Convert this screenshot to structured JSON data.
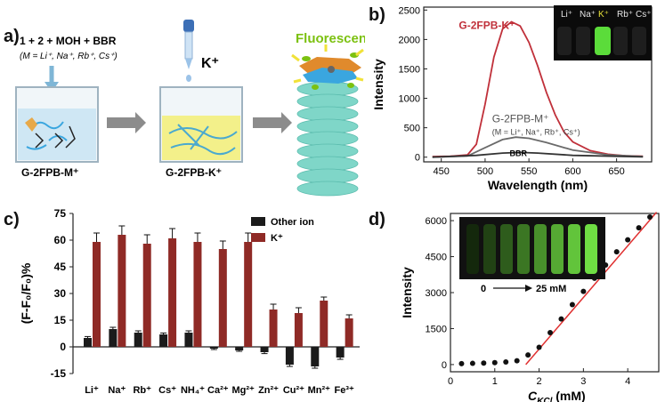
{
  "panel_labels": {
    "a": "a)",
    "b": "b)",
    "c": "c)",
    "d": "d)"
  },
  "panel_a": {
    "reaction": "1 + 2 + MOH + BBR",
    "metals": "(M = Li⁺, Na⁺, Rb⁺, Cs⁺)",
    "added_ion": "K⁺",
    "fluorescent": "Fluorescent",
    "label_left": "G-2FPB-M⁺",
    "label_mid": "G-2FPB-K⁺",
    "colors": {
      "beaker_liquid_left": "#cfe7f4",
      "beaker_liquid_mid": "#f3f08a",
      "stack": "#7fd6c8",
      "fluor_text": "#7cc110"
    }
  },
  "panel_b_text": {
    "curve_k_label": "G-2FPB-K⁺",
    "curve_m_label": "G-2FPB-M⁺",
    "curve_m_sub": "(M = Li⁺, Na⁺, Rb⁺, Cs⁺)",
    "bbr_label": "BBR",
    "inset_labels": [
      "Li⁺",
      "Na⁺",
      "K⁺",
      "Rb⁺",
      "Cs⁺"
    ]
  },
  "panel_d_text": {
    "inset_range_start": "0",
    "inset_range_end": "25 mM"
  },
  "chart_data": [
    {
      "id": "b",
      "type": "line",
      "xlabel": "Wavelength (nm)",
      "ylabel": "Intensity",
      "xlim": [
        430,
        690
      ],
      "ylim": [
        -80,
        2550
      ],
      "xticks": [
        450,
        500,
        550,
        600,
        650
      ],
      "yticks": [
        0,
        500,
        1000,
        1500,
        2000,
        2500
      ],
      "series": [
        {
          "name": "G-2FPB-K⁺",
          "color": "#c0303a",
          "x": [
            440,
            460,
            480,
            490,
            500,
            510,
            520,
            530,
            540,
            550,
            560,
            570,
            580,
            590,
            600,
            620,
            640,
            660,
            680
          ],
          "y": [
            10,
            15,
            40,
            220,
            900,
            1700,
            2180,
            2300,
            2230,
            1950,
            1550,
            1100,
            720,
            430,
            260,
            110,
            50,
            25,
            15
          ]
        },
        {
          "name": "G-2FPB-M⁺",
          "color": "#6a6a6a",
          "x": [
            440,
            480,
            500,
            520,
            535,
            550,
            570,
            600,
            640,
            680
          ],
          "y": [
            0,
            20,
            160,
            300,
            340,
            320,
            250,
            120,
            40,
            10
          ]
        },
        {
          "name": "BBR",
          "color": "#333333",
          "x": [
            440,
            490,
            520,
            540,
            560,
            600,
            680
          ],
          "y": [
            0,
            30,
            70,
            80,
            70,
            30,
            5
          ]
        }
      ]
    },
    {
      "id": "c",
      "type": "bar",
      "ylabel": "(F-F₀/F₀)%",
      "ylim": [
        -15,
        75
      ],
      "yticks": [
        -15,
        0,
        15,
        30,
        45,
        60,
        75
      ],
      "categories": [
        "Li⁺",
        "Na⁺",
        "Rb⁺",
        "Cs⁺",
        "NH₄⁺",
        "Ca²⁺",
        "Mg²⁺",
        "Zn²⁺",
        "Cu²⁺",
        "Mn²⁺",
        "Fe³⁺"
      ],
      "series": [
        {
          "name": "Other ion",
          "color": "#1b1b1b",
          "values": [
            5,
            10,
            8,
            7,
            8,
            -1,
            -2,
            -3,
            -10,
            -11,
            -6
          ],
          "errors": [
            0.8,
            1,
            1,
            0.8,
            1,
            0.5,
            0.5,
            0.8,
            1,
            1,
            1
          ]
        },
        {
          "name": "K⁺",
          "color": "#8f2a26",
          "values": [
            59,
            63,
            58,
            61,
            59,
            55,
            59,
            21,
            19,
            26,
            16
          ],
          "errors": [
            5,
            5,
            5,
            5.5,
            5,
            4.5,
            5,
            3,
            3,
            2,
            2
          ]
        }
      ],
      "legend": "top-right"
    },
    {
      "id": "d",
      "type": "scatter",
      "xlabel": "C_KCl (mM)",
      "xlabel_main": "C",
      "xlabel_sub": "KCl",
      "xlabel_unit": " (mM)",
      "ylabel": "Intensity",
      "xlim": [
        0,
        4.7
      ],
      "ylim": [
        -300,
        6300
      ],
      "xticks": [
        0,
        1,
        2,
        3,
        4
      ],
      "yticks": [
        0,
        1500,
        3000,
        4500,
        6000
      ],
      "x": [
        0.25,
        0.5,
        0.75,
        1.0,
        1.25,
        1.5,
        1.75,
        2.0,
        2.25,
        2.5,
        2.75,
        3.0,
        3.25,
        3.5,
        3.75,
        4.0,
        4.25,
        4.5
      ],
      "y": [
        40,
        50,
        60,
        80,
        110,
        160,
        400,
        720,
        1330,
        1900,
        2500,
        3050,
        3600,
        4150,
        4700,
        5200,
        5700,
        6150
      ],
      "fit": {
        "x": [
          1.7,
          4.65
        ],
        "y": [
          0,
          6350
        ],
        "color": "#e03030"
      }
    }
  ]
}
